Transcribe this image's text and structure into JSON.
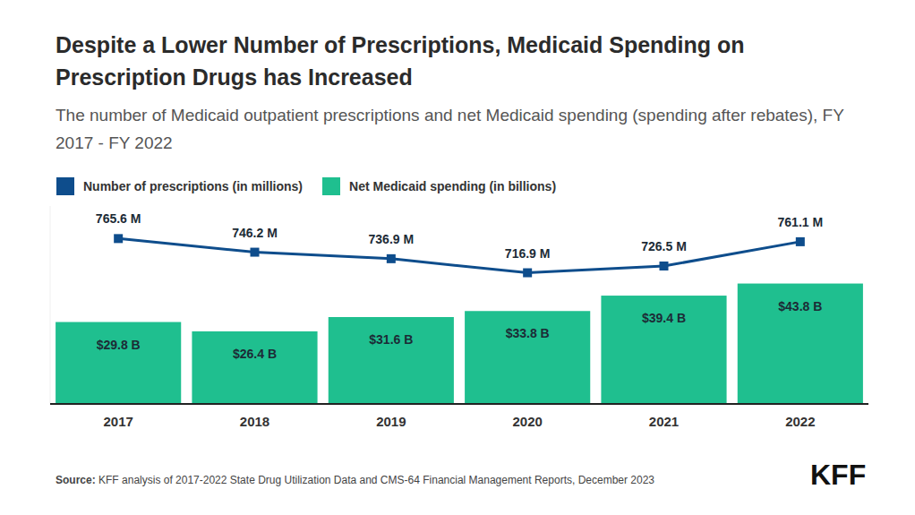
{
  "chart_data": {
    "type": "bar",
    "title": "Despite a Lower Number of Prescriptions, Medicaid Spending on Prescription Drugs has Increased",
    "subtitle": "The number of Medicaid outpatient prescriptions and net Medicaid spending (spending after rebates), FY 2017 - FY 2022",
    "categories": [
      "2017",
      "2018",
      "2019",
      "2020",
      "2021",
      "2022"
    ],
    "series": [
      {
        "name": "Number of prescriptions (in millions)",
        "type": "line",
        "axis": "y2",
        "color": "#0e4d8c",
        "marker": "square",
        "values": [
          765.6,
          746.2,
          736.9,
          716.9,
          726.5,
          761.1
        ],
        "value_labels": [
          "765.6 M",
          "746.2 M",
          "736.9 M",
          "716.9 M",
          "726.5 M",
          "761.1 M"
        ]
      },
      {
        "name": "Net Medicaid spending (in billions)",
        "type": "bar",
        "color": "#1fbf8f",
        "values": [
          29.8,
          26.4,
          31.6,
          33.8,
          39.4,
          43.8
        ],
        "value_labels": [
          "$29.8 B",
          "$26.4 B",
          "$31.6 B",
          "$33.8 B",
          "$39.4 B",
          "$43.8 B"
        ]
      }
    ],
    "ylim": [
      0,
      72
    ],
    "y2lim": [
      530,
      812
    ],
    "data_labels": true,
    "tick_labels": "x",
    "legend": "top-left",
    "grid": false,
    "source_label": "Source:",
    "source_text": "KFF analysis of 2017-2022 State Drug Utilization Data and CMS-64 Financial Management Reports, December 2023",
    "logo": "KFF"
  }
}
